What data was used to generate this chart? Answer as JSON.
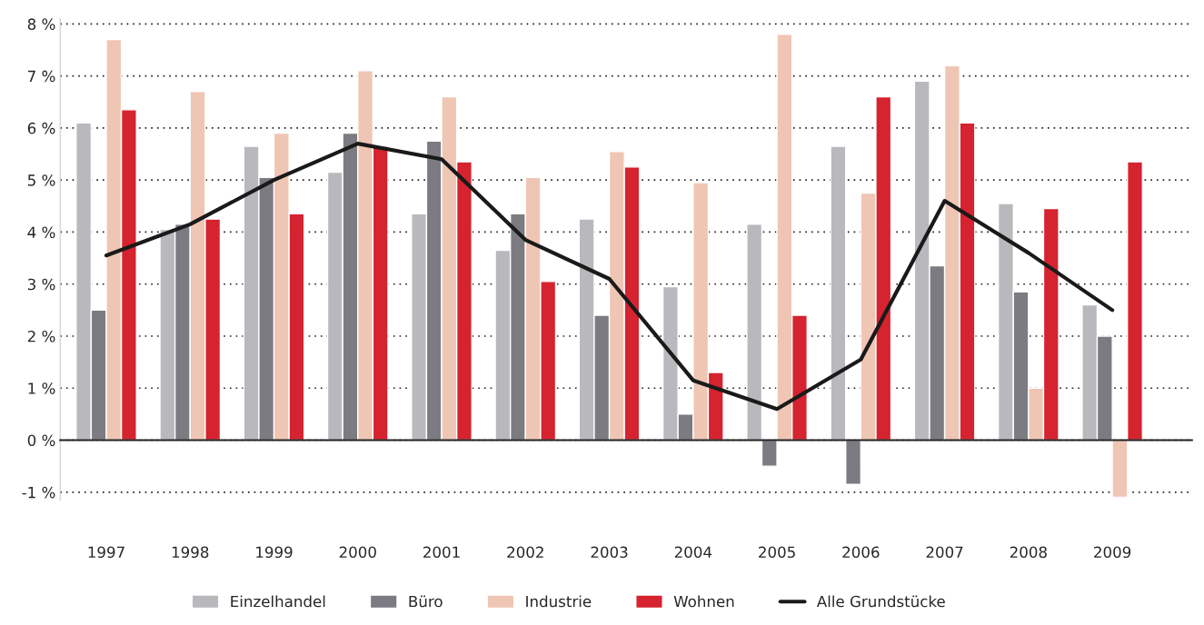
{
  "chart_data": {
    "type": "bar",
    "categories": [
      "1997",
      "1998",
      "1999",
      "2000",
      "2001",
      "2002",
      "2003",
      "2004",
      "2005",
      "2006",
      "2007",
      "2008",
      "2009"
    ],
    "series": [
      {
        "name": "Einzelhandel",
        "color": "#b9b9bd",
        "values": [
          6.1,
          4.05,
          5.65,
          5.15,
          4.35,
          3.65,
          4.25,
          2.95,
          4.15,
          5.65,
          6.9,
          4.55,
          2.6
        ]
      },
      {
        "name": "Büro",
        "color": "#7b7b81",
        "values": [
          2.5,
          4.15,
          5.05,
          5.9,
          5.75,
          4.35,
          2.4,
          0.5,
          -0.5,
          -0.85,
          3.35,
          2.85,
          2.0
        ]
      },
      {
        "name": "Industrie",
        "color": "#efc5b3",
        "values": [
          7.7,
          6.7,
          5.9,
          7.1,
          6.6,
          5.05,
          5.55,
          4.95,
          7.8,
          4.75,
          7.2,
          1.0,
          -1.1
        ]
      },
      {
        "name": "Wohnen",
        "color": "#d5232f",
        "values": [
          6.35,
          4.25,
          4.35,
          5.65,
          5.35,
          3.05,
          5.25,
          1.3,
          2.4,
          6.6,
          6.1,
          4.45,
          5.35
        ]
      },
      {
        "name": "Alle Grundstücke",
        "type": "line",
        "color": "#1a1a1a",
        "values": [
          3.55,
          4.15,
          5.0,
          5.7,
          5.4,
          3.85,
          3.1,
          1.15,
          0.6,
          1.55,
          4.6,
          3.6,
          2.5
        ]
      }
    ],
    "ylim": [
      -1.15,
      8.1
    ],
    "yticks": [
      {
        "value": -1,
        "label": "-1 %"
      },
      {
        "value": 0,
        "label": "0 %"
      },
      {
        "value": 1,
        "label": "1 %"
      },
      {
        "value": 2,
        "label": "2 %"
      },
      {
        "value": 3,
        "label": "3 %"
      },
      {
        "value": 4,
        "label": "4 %"
      },
      {
        "value": 5,
        "label": "5 %"
      },
      {
        "value": 6,
        "label": "6 %"
      },
      {
        "value": 7,
        "label": "7 %"
      },
      {
        "value": 8,
        "label": "8 %"
      }
    ],
    "grid": "y",
    "legend": "bottom",
    "line_style": "solid",
    "marker": "none"
  }
}
